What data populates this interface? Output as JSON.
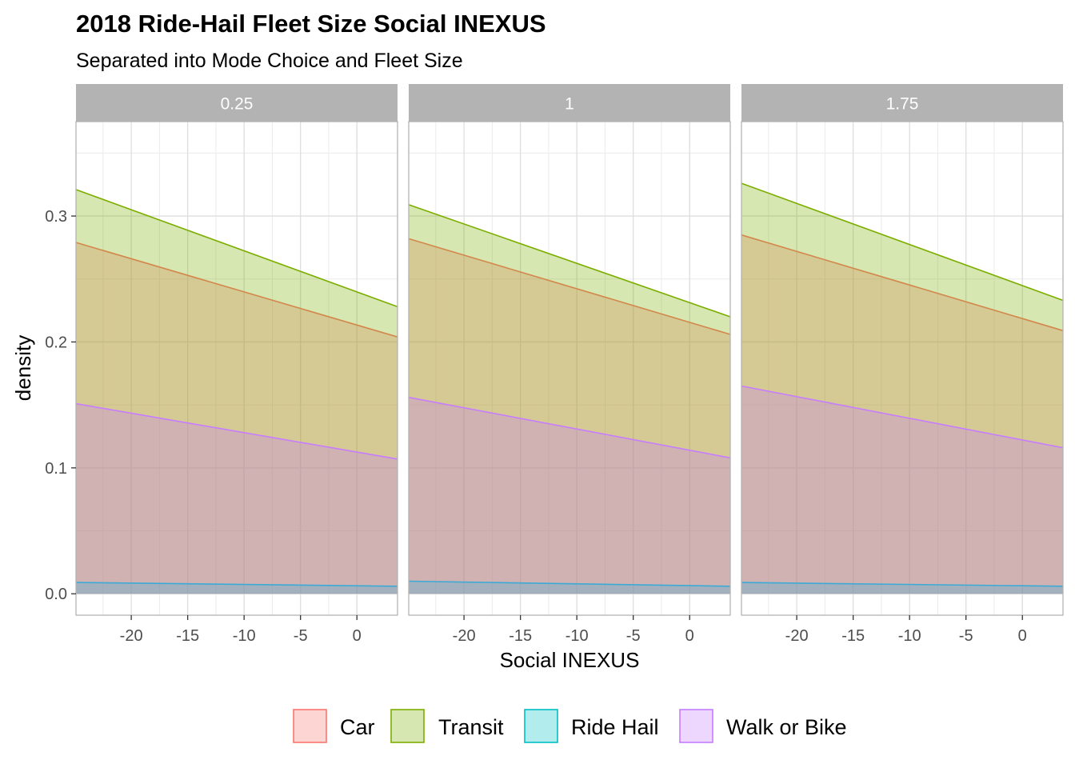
{
  "chart_data": {
    "type": "area",
    "title": "2018 Ride-Hail Fleet Size Social INEXUS",
    "subtitle": "Separated into Mode Choice and Fleet Size",
    "xlabel": "Social INEXUS",
    "ylabel": "density",
    "xlim": [
      -24.9,
      3.6
    ],
    "ylim": [
      -0.017,
      0.375
    ],
    "x_ticks": [
      -20,
      -15,
      -10,
      -5,
      0
    ],
    "y_ticks": [
      0.0,
      0.1,
      0.2,
      0.3
    ],
    "x_tick_labels": [
      "-20",
      "-15",
      "-10",
      "-5",
      "0"
    ],
    "y_tick_labels": [
      "0.0",
      "0.1",
      "0.2",
      "0.3"
    ],
    "grid": true,
    "legend_position": "bottom",
    "series_styles": [
      {
        "name": "Car",
        "line": "#F8766D",
        "fill": "#F8766D"
      },
      {
        "name": "Transit",
        "line": "#7CAE00",
        "fill": "#7CAE00"
      },
      {
        "name": "Ride Hail",
        "line": "#00BFC4",
        "fill": "#00BFC4"
      },
      {
        "name": "Walk or Bike",
        "line": "#C77CFF",
        "fill": "#C77CFF"
      }
    ],
    "fill_opacity": 0.3,
    "draw_order": [
      "Car",
      "Transit",
      "Ride Hail",
      "Walk or Bike"
    ],
    "panels": [
      {
        "label": "0.25",
        "series": [
          {
            "name": "Car",
            "x": [
              -24.9,
              3.6
            ],
            "y": [
              0.279,
              0.204
            ]
          },
          {
            "name": "Transit",
            "x": [
              -24.9,
              3.6
            ],
            "y": [
              0.321,
              0.228
            ]
          },
          {
            "name": "Ride Hail",
            "x": [
              -24.9,
              3.6
            ],
            "y": [
              0.009,
              0.006
            ]
          },
          {
            "name": "Walk or Bike",
            "x": [
              -24.9,
              3.6
            ],
            "y": [
              0.151,
              0.107
            ]
          }
        ]
      },
      {
        "label": "1",
        "series": [
          {
            "name": "Car",
            "x": [
              -24.9,
              3.6
            ],
            "y": [
              0.282,
              0.206
            ]
          },
          {
            "name": "Transit",
            "x": [
              -24.9,
              3.6
            ],
            "y": [
              0.309,
              0.22
            ]
          },
          {
            "name": "Ride Hail",
            "x": [
              -24.9,
              3.6
            ],
            "y": [
              0.01,
              0.006
            ]
          },
          {
            "name": "Walk or Bike",
            "x": [
              -24.9,
              3.6
            ],
            "y": [
              0.156,
              0.108
            ]
          }
        ]
      },
      {
        "label": "1.75",
        "series": [
          {
            "name": "Car",
            "x": [
              -24.9,
              3.6
            ],
            "y": [
              0.285,
              0.209
            ]
          },
          {
            "name": "Transit",
            "x": [
              -24.9,
              3.6
            ],
            "y": [
              0.326,
              0.233
            ]
          },
          {
            "name": "Ride Hail",
            "x": [
              -24.9,
              3.6
            ],
            "y": [
              0.009,
              0.006
            ]
          },
          {
            "name": "Walk or Bike",
            "x": [
              -24.9,
              3.6
            ],
            "y": [
              0.165,
              0.116
            ]
          }
        ]
      }
    ]
  }
}
